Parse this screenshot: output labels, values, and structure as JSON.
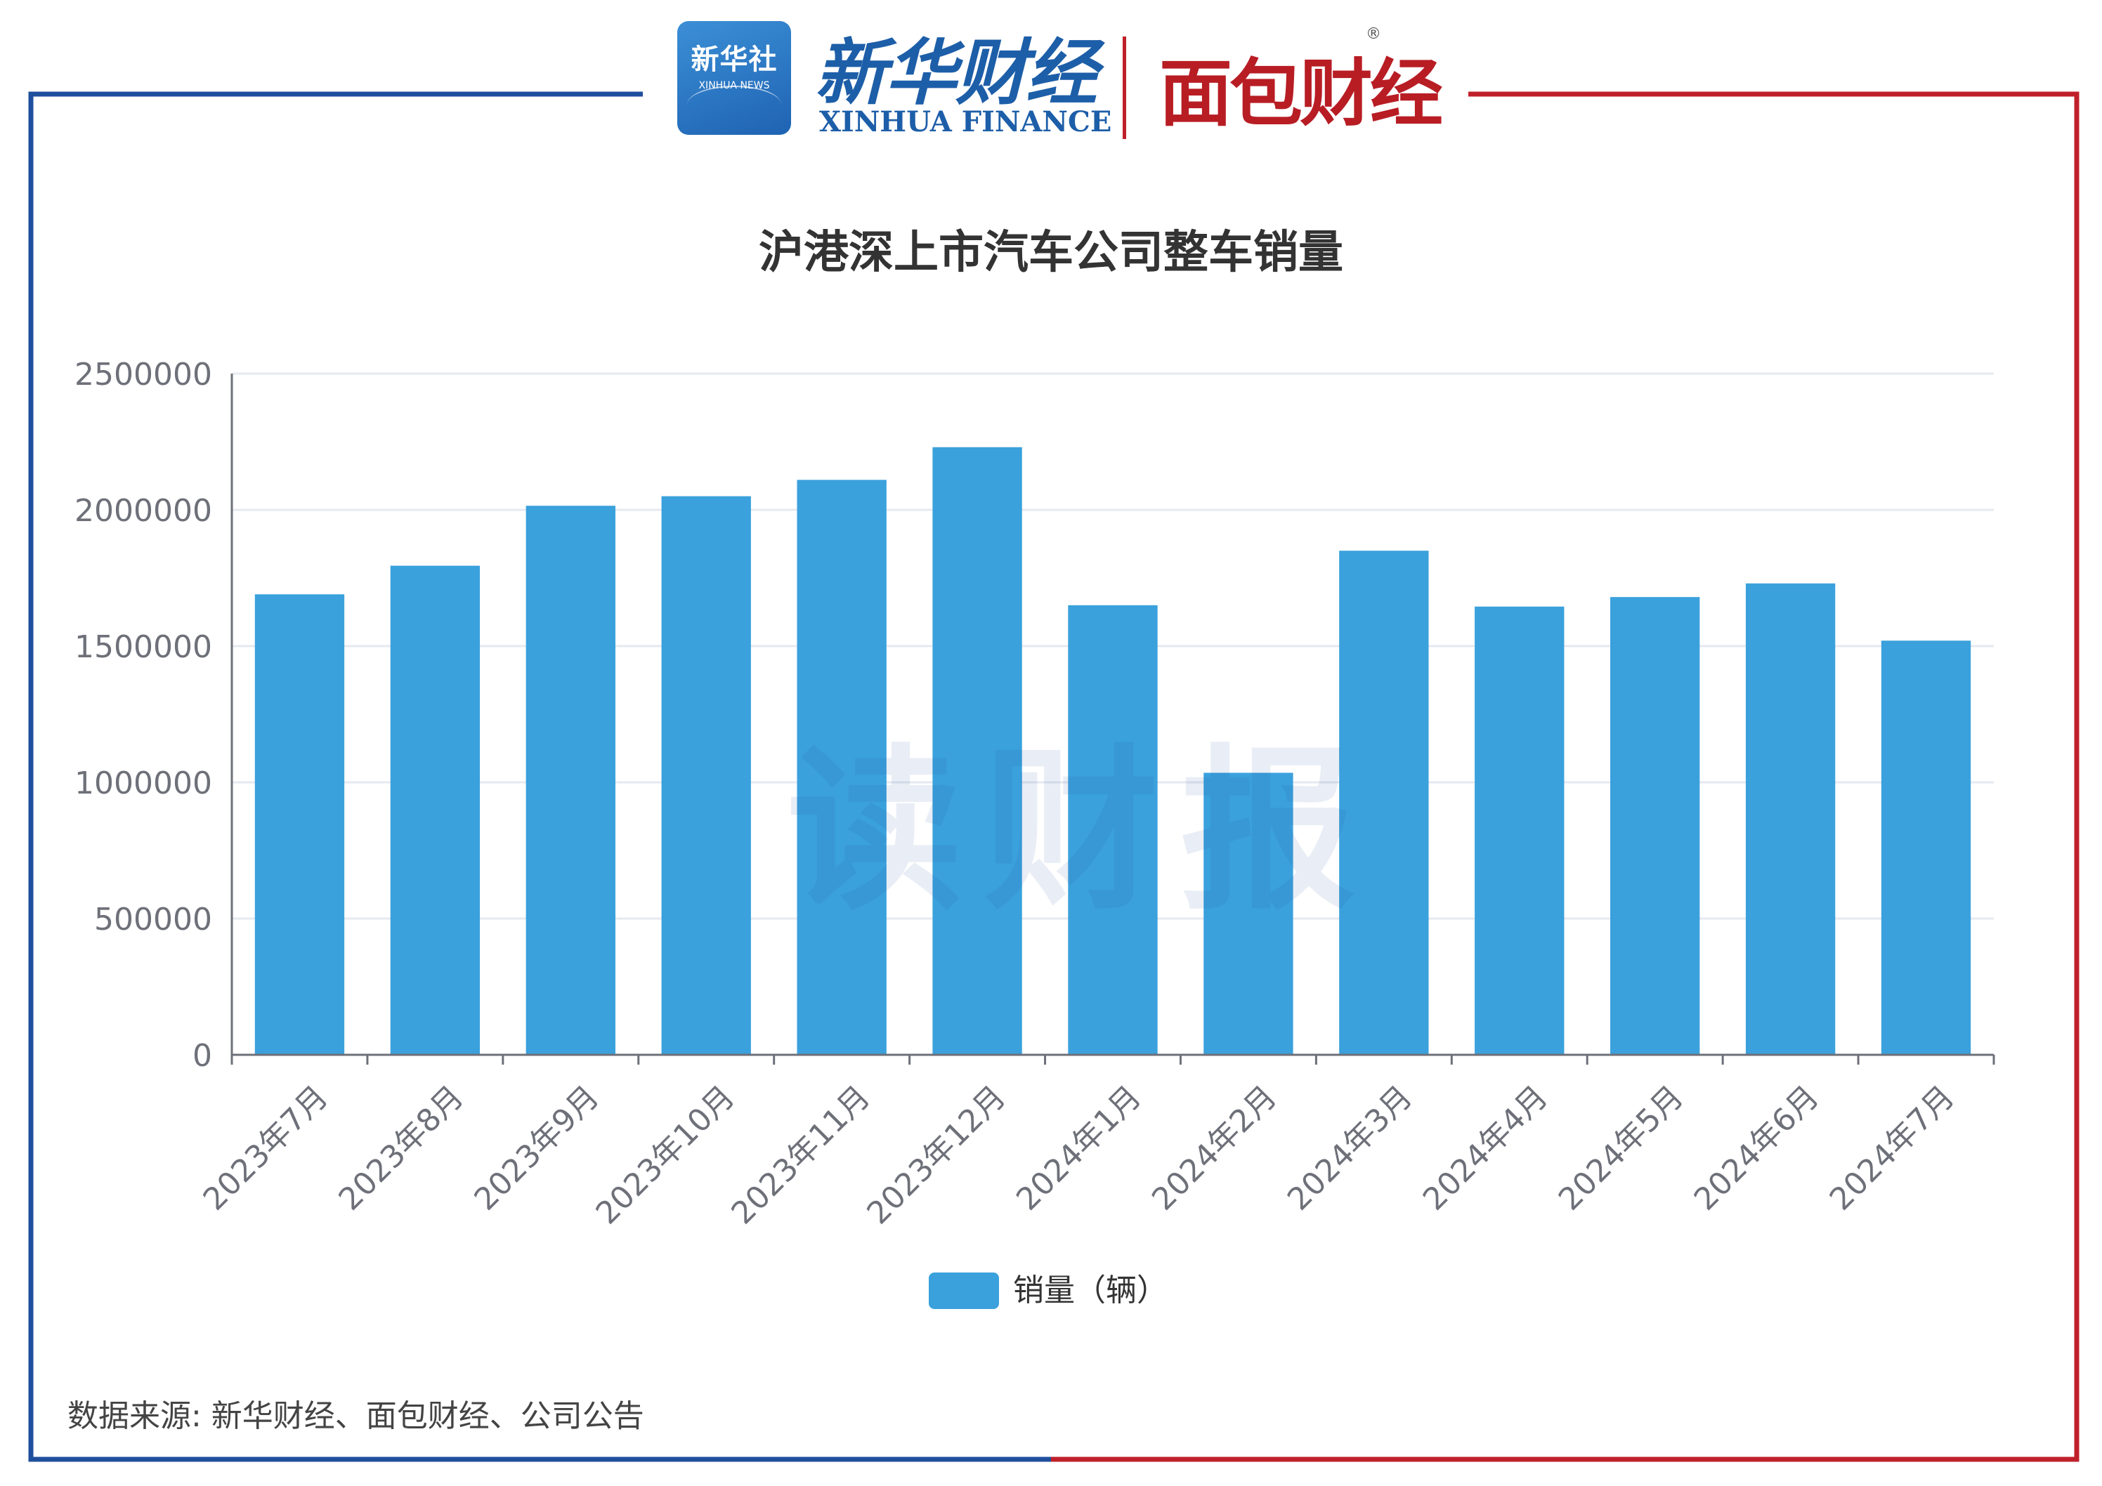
{
  "header": {
    "xinhua_badge_cn": "新华社",
    "xinhua_badge_en": "XINHUA NEWS",
    "xinhua_finance_cn": "新华财经",
    "xinhua_finance_en": "XINHUA FINANCE",
    "mianbao_logo": "面包财经",
    "registered_mark": "®"
  },
  "watermark": "读财报",
  "source_note": "数据来源: 新华财经、面包财经、公司公告",
  "colors": {
    "frame_left": "#1f4f9c",
    "frame_right": "#c0202a",
    "bar": "#3aa1dc",
    "grid": "#e6e9f0",
    "axis": "#6e7079",
    "tick_text": "#6e7079"
  },
  "chart_data": {
    "type": "bar",
    "title": "沪港深上市汽车公司整车销量",
    "categories": [
      "2023年7月",
      "2023年8月",
      "2023年9月",
      "2023年10月",
      "2023年11月",
      "2023年12月",
      "2024年1月",
      "2024年2月",
      "2024年3月",
      "2024年4月",
      "2024年5月",
      "2024年6月",
      "2024年7月"
    ],
    "series": [
      {
        "name": "销量（辆）",
        "values": [
          1690000,
          1795000,
          2015000,
          2050000,
          2110000,
          2230000,
          1650000,
          1035000,
          1850000,
          1645000,
          1680000,
          1730000,
          1520000
        ]
      }
    ],
    "ylim": [
      0,
      2500000
    ],
    "yticks": [
      0,
      500000,
      1000000,
      1500000,
      2000000,
      2500000
    ],
    "grid": true,
    "legend_position": "bottom-center",
    "xlabel": "",
    "ylabel": ""
  }
}
